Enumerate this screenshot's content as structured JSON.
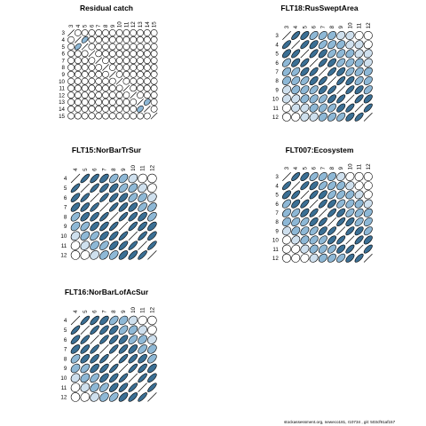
{
  "footer": "stockassessment.org, neweco181, r10734 , git: 503cf91af157",
  "chart_data": [
    {
      "type": "correlation-ellipse-matrix",
      "title": "Residual catch",
      "ages": [
        "3",
        "4",
        "5",
        "6",
        "7",
        "8",
        "9",
        "10",
        "11",
        "12",
        "13",
        "14",
        "15"
      ],
      "note": "strength of correlation per cell; 0 = circle",
      "r": [
        [
          1,
          0.05,
          0.05,
          0,
          0,
          0,
          0,
          0,
          0,
          0,
          0,
          0,
          0
        ],
        [
          0.05,
          1,
          0.5,
          0,
          0,
          0,
          0,
          0,
          0,
          0,
          0,
          0,
          0
        ],
        [
          0.05,
          0.5,
          1,
          0.05,
          0,
          0,
          0,
          0,
          0,
          0,
          0,
          0,
          0
        ],
        [
          0,
          0,
          0.05,
          1,
          0.05,
          0,
          0,
          0,
          0,
          0,
          0,
          0,
          0
        ],
        [
          0,
          0,
          0,
          0.05,
          1,
          0.05,
          0,
          0,
          0,
          0,
          0,
          0,
          0
        ],
        [
          0,
          0,
          0,
          0,
          0.05,
          1,
          0.05,
          0,
          0,
          0,
          0,
          0,
          0
        ],
        [
          0,
          0,
          0,
          0,
          0,
          0.05,
          1,
          0.05,
          0,
          0,
          0,
          0,
          0
        ],
        [
          0,
          0,
          0,
          0,
          0,
          0,
          0.05,
          1,
          0.05,
          0,
          0,
          0,
          0
        ],
        [
          0,
          0,
          0,
          0,
          0,
          0,
          0,
          0.05,
          1,
          0.05,
          0,
          0,
          0
        ],
        [
          0,
          0,
          0,
          0,
          0,
          0,
          0,
          0,
          0.05,
          1,
          0.05,
          0,
          0
        ],
        [
          0,
          0,
          0,
          0,
          0,
          0,
          0,
          0,
          0,
          0.05,
          1,
          0.4,
          0
        ],
        [
          0,
          0,
          0,
          0,
          0,
          0,
          0,
          0,
          0,
          0,
          0.4,
          1,
          0.05
        ],
        [
          0,
          0,
          0,
          0,
          0,
          0,
          0,
          0,
          0,
          0,
          0,
          0.05,
          1
        ]
      ]
    },
    {
      "type": "correlation-ellipse-matrix",
      "title": "FLT18:RusSweptArea",
      "ages": [
        "3",
        "4",
        "5",
        "6",
        "7",
        "8",
        "9",
        "10",
        "11",
        "12"
      ],
      "r": [
        [
          1,
          0.72,
          0.6,
          0.5,
          0.4,
          0.3,
          0.2,
          0.15,
          0.08,
          0
        ],
        [
          0.72,
          1,
          0.72,
          0.6,
          0.5,
          0.4,
          0.3,
          0.2,
          0.15,
          0.08
        ],
        [
          0.6,
          0.72,
          1,
          0.72,
          0.6,
          0.5,
          0.4,
          0.3,
          0.2,
          0.15
        ],
        [
          0.5,
          0.6,
          0.72,
          1,
          0.72,
          0.6,
          0.5,
          0.4,
          0.3,
          0.2
        ],
        [
          0.4,
          0.5,
          0.6,
          0.72,
          1,
          0.72,
          0.6,
          0.5,
          0.4,
          0.3
        ],
        [
          0.3,
          0.4,
          0.5,
          0.6,
          0.72,
          1,
          0.72,
          0.6,
          0.5,
          0.4
        ],
        [
          0.2,
          0.3,
          0.4,
          0.5,
          0.6,
          0.72,
          1,
          0.72,
          0.6,
          0.5
        ],
        [
          0.15,
          0.2,
          0.3,
          0.4,
          0.5,
          0.6,
          0.72,
          1,
          0.72,
          0.6
        ],
        [
          0.08,
          0.15,
          0.2,
          0.3,
          0.4,
          0.5,
          0.6,
          0.72,
          1,
          0.72
        ],
        [
          0,
          0.08,
          0.15,
          0.2,
          0.3,
          0.4,
          0.5,
          0.6,
          0.72,
          1
        ]
      ]
    },
    {
      "type": "correlation-ellipse-matrix",
      "title": "FLT15:NorBarTrSur",
      "ages": [
        "4",
        "5",
        "6",
        "7",
        "8",
        "9",
        "10",
        "11",
        "12"
      ],
      "r": [
        [
          1,
          0.8,
          0.72,
          0.62,
          0.5,
          0.4,
          0.25,
          0.12,
          0
        ],
        [
          0.8,
          1,
          0.8,
          0.72,
          0.62,
          0.5,
          0.4,
          0.25,
          0.12
        ],
        [
          0.72,
          0.8,
          1,
          0.8,
          0.72,
          0.62,
          0.5,
          0.4,
          0.25
        ],
        [
          0.62,
          0.72,
          0.8,
          1,
          0.8,
          0.72,
          0.62,
          0.5,
          0.4
        ],
        [
          0.5,
          0.62,
          0.72,
          0.8,
          1,
          0.8,
          0.72,
          0.62,
          0.5
        ],
        [
          0.4,
          0.5,
          0.62,
          0.72,
          0.8,
          1,
          0.8,
          0.72,
          0.62
        ],
        [
          0.25,
          0.4,
          0.5,
          0.62,
          0.72,
          0.8,
          1,
          0.8,
          0.72
        ],
        [
          0.12,
          0.25,
          0.4,
          0.5,
          0.62,
          0.72,
          0.8,
          1,
          0.8
        ],
        [
          0,
          0.12,
          0.25,
          0.4,
          0.5,
          0.62,
          0.72,
          0.8,
          1
        ]
      ]
    },
    {
      "type": "correlation-ellipse-matrix",
      "title": "FLT007:Ecosystem",
      "ages": [
        "3",
        "4",
        "5",
        "6",
        "7",
        "8",
        "9",
        "10",
        "11",
        "12"
      ],
      "r": [
        [
          1,
          0.72,
          0.6,
          0.5,
          0.4,
          0.3,
          0.2,
          0.1,
          0.05,
          0
        ],
        [
          0.72,
          1,
          0.72,
          0.6,
          0.5,
          0.4,
          0.3,
          0.2,
          0.1,
          0.05
        ],
        [
          0.6,
          0.72,
          1,
          0.72,
          0.6,
          0.5,
          0.4,
          0.3,
          0.2,
          0.1
        ],
        [
          0.5,
          0.6,
          0.72,
          1,
          0.72,
          0.6,
          0.5,
          0.4,
          0.3,
          0.2
        ],
        [
          0.4,
          0.5,
          0.6,
          0.72,
          1,
          0.72,
          0.6,
          0.5,
          0.4,
          0.3
        ],
        [
          0.3,
          0.4,
          0.5,
          0.6,
          0.72,
          1,
          0.72,
          0.6,
          0.5,
          0.4
        ],
        [
          0.2,
          0.3,
          0.4,
          0.5,
          0.6,
          0.72,
          1,
          0.72,
          0.6,
          0.5
        ],
        [
          0.1,
          0.2,
          0.3,
          0.4,
          0.5,
          0.6,
          0.72,
          1,
          0.72,
          0.6
        ],
        [
          0.05,
          0.1,
          0.2,
          0.3,
          0.4,
          0.5,
          0.6,
          0.72,
          1,
          0.72
        ],
        [
          0,
          0.05,
          0.1,
          0.2,
          0.3,
          0.4,
          0.5,
          0.6,
          0.72,
          1
        ]
      ]
    },
    {
      "type": "correlation-ellipse-matrix",
      "title": "FLT16:NorBarLofAcSur",
      "ages": [
        "4",
        "5",
        "6",
        "7",
        "8",
        "9",
        "10",
        "11",
        "12"
      ],
      "r": [
        [
          1,
          0.8,
          0.72,
          0.62,
          0.5,
          0.35,
          0.2,
          0.1,
          0
        ],
        [
          0.8,
          1,
          0.8,
          0.72,
          0.62,
          0.5,
          0.35,
          0.2,
          0.1
        ],
        [
          0.72,
          0.8,
          1,
          0.8,
          0.72,
          0.62,
          0.5,
          0.35,
          0.2
        ],
        [
          0.62,
          0.72,
          0.8,
          1,
          0.8,
          0.72,
          0.62,
          0.5,
          0.35
        ],
        [
          0.5,
          0.62,
          0.72,
          0.8,
          1,
          0.8,
          0.72,
          0.62,
          0.5
        ],
        [
          0.35,
          0.5,
          0.62,
          0.72,
          0.8,
          1,
          0.8,
          0.72,
          0.62
        ],
        [
          0.2,
          0.35,
          0.5,
          0.62,
          0.72,
          0.8,
          1,
          0.8,
          0.72
        ],
        [
          0.1,
          0.2,
          0.35,
          0.5,
          0.62,
          0.72,
          0.8,
          1,
          0.8
        ],
        [
          0,
          0.1,
          0.2,
          0.35,
          0.5,
          0.62,
          0.72,
          0.8,
          1
        ]
      ]
    }
  ]
}
